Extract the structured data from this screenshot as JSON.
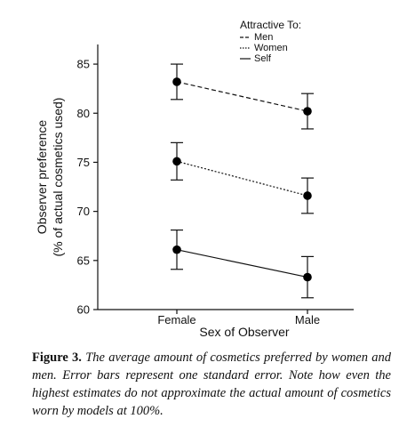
{
  "chart_data": {
    "type": "line",
    "categories": [
      "Female",
      "Male"
    ],
    "xlabel": "Sex of Observer",
    "ylabel_lines": [
      "Observer preference",
      "(% of actual cosmetics used)"
    ],
    "ylim": [
      60,
      87
    ],
    "yticks": [
      60,
      65,
      70,
      75,
      80,
      85
    ],
    "legend_title": "Attractive To:",
    "legend_position": "top-right",
    "series": [
      {
        "name": "Men",
        "linestyle": "dashed",
        "values": [
          83.2,
          80.2
        ],
        "errors": [
          1.8,
          1.8
        ]
      },
      {
        "name": "Women",
        "linestyle": "dotted",
        "values": [
          75.1,
          71.6
        ],
        "errors": [
          1.9,
          1.8
        ]
      },
      {
        "name": "Self",
        "linestyle": "solid",
        "values": [
          66.1,
          63.3
        ],
        "errors": [
          2.0,
          2.1
        ]
      }
    ]
  },
  "caption": {
    "label": "Figure 3.",
    "text": "The average amount of cosmetics preferred by women and men. Error bars represent one standard error. Note how even the highest estimates do not approximate the actual amount of cosmetics worn by models at 100%."
  }
}
